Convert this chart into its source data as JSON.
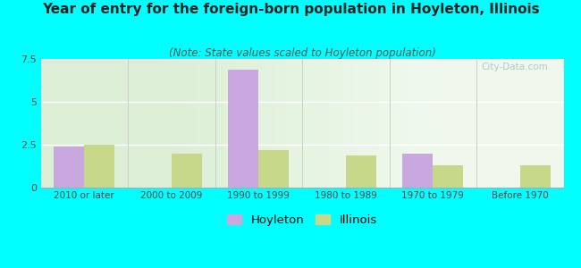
{
  "title": "Year of entry for the foreign-born population in Hoyleton, Illinois",
  "subtitle": "(Note: State values scaled to Hoyleton population)",
  "categories": [
    "2010 or later",
    "2000 to 2009",
    "1990 to 1999",
    "1980 to 1989",
    "1970 to 1979",
    "Before 1970"
  ],
  "hoyleton_values": [
    2.4,
    0,
    6.85,
    0,
    2.0,
    0
  ],
  "illinois_values": [
    2.5,
    2.0,
    2.2,
    1.85,
    1.3,
    1.3
  ],
  "ylim": [
    0,
    7.5
  ],
  "yticks": [
    0,
    2.5,
    5,
    7.5
  ],
  "hoyleton_color": "#c9a8e0",
  "illinois_color": "#c8d88a",
  "background_color": "#00ffff",
  "title_fontsize": 11,
  "subtitle_fontsize": 8.5,
  "bar_width": 0.35,
  "watermark": "City-Data.com"
}
